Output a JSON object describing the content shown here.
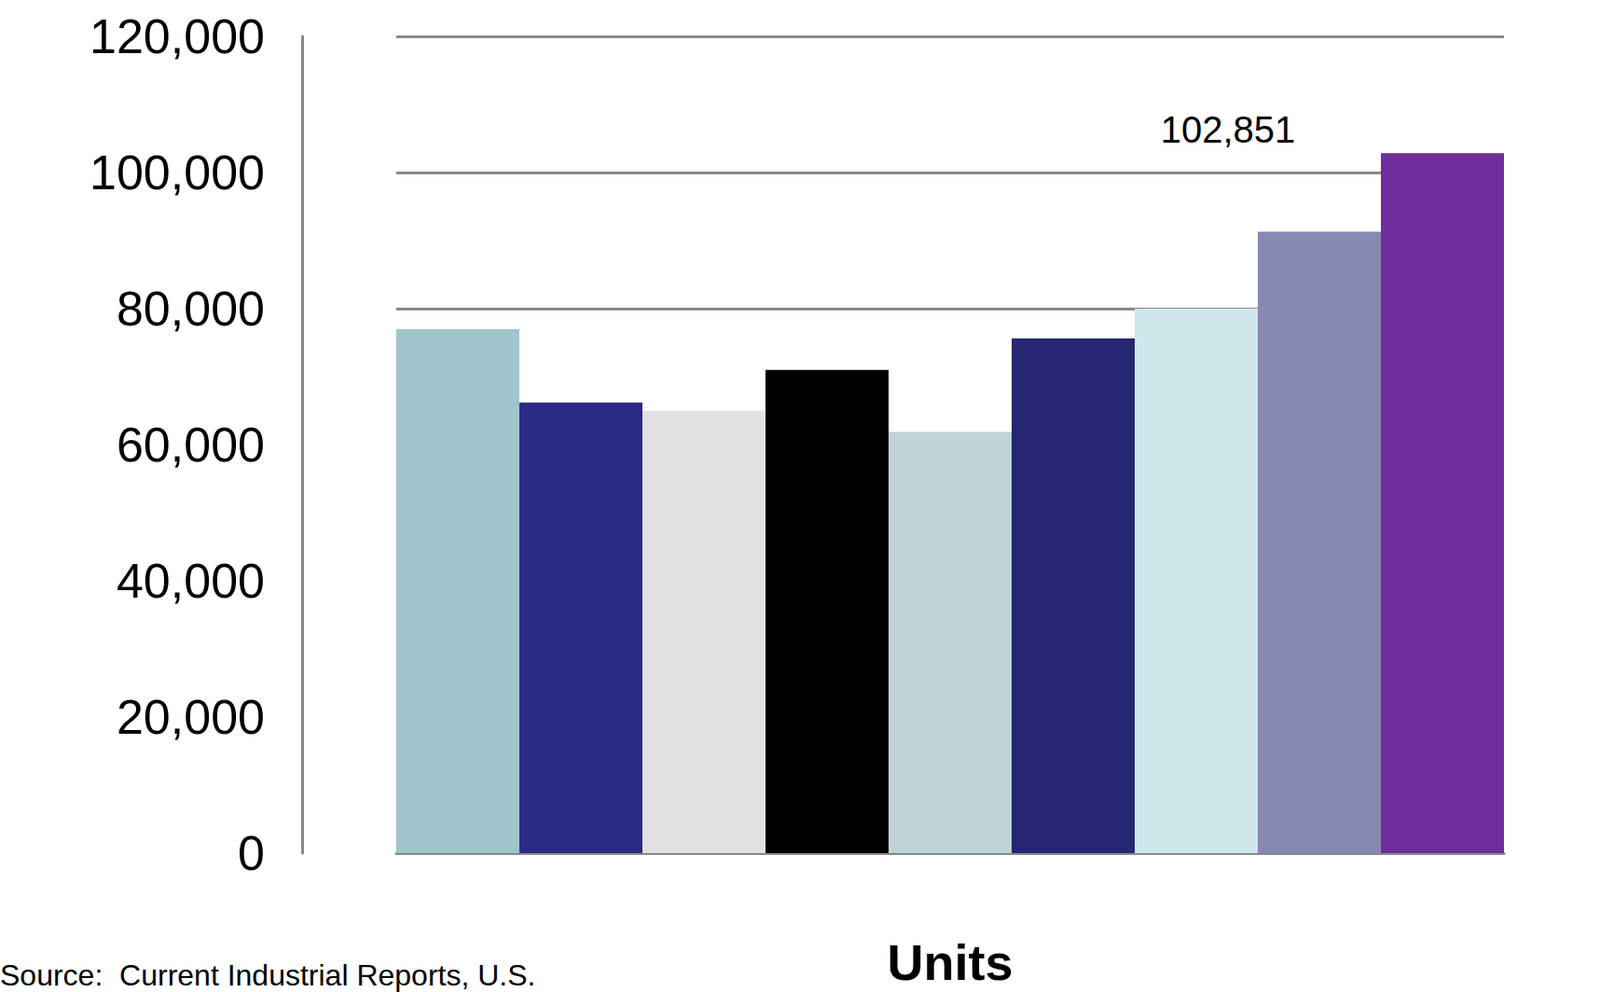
{
  "chart_data": {
    "type": "bar",
    "x_label": "Units",
    "source": "Source:  Current Industrial Reports, U.S.",
    "categories": [
      null,
      null,
      null,
      null,
      null,
      null,
      null,
      null,
      null
    ],
    "values": [
      77000,
      66200,
      65000,
      71000,
      61900,
      75600,
      80000,
      91300,
      102851
    ],
    "value_labels": [
      null,
      null,
      null,
      null,
      null,
      null,
      null,
      null,
      "102,851"
    ],
    "colors": [
      "#9fc5cb",
      "#2b2b85",
      "#e1e1e1",
      "#000000",
      "#bfd3d8",
      "#262673",
      "#cfe6ea",
      "#8888b5",
      "#6f2e9c"
    ],
    "ylim": [
      0,
      120000
    ],
    "yticks": [
      0,
      {
        "value": 20000,
        "label": "20,000"
      },
      {
        "value": 40000,
        "label": "40,000"
      },
      {
        "value": 60000,
        "label": "60,000"
      },
      {
        "value": 80000,
        "label": "80,000"
      },
      {
        "value": 100000,
        "label": "100,000"
      },
      {
        "value": 120000,
        "label": "120,000"
      }
    ],
    "grid": true
  }
}
